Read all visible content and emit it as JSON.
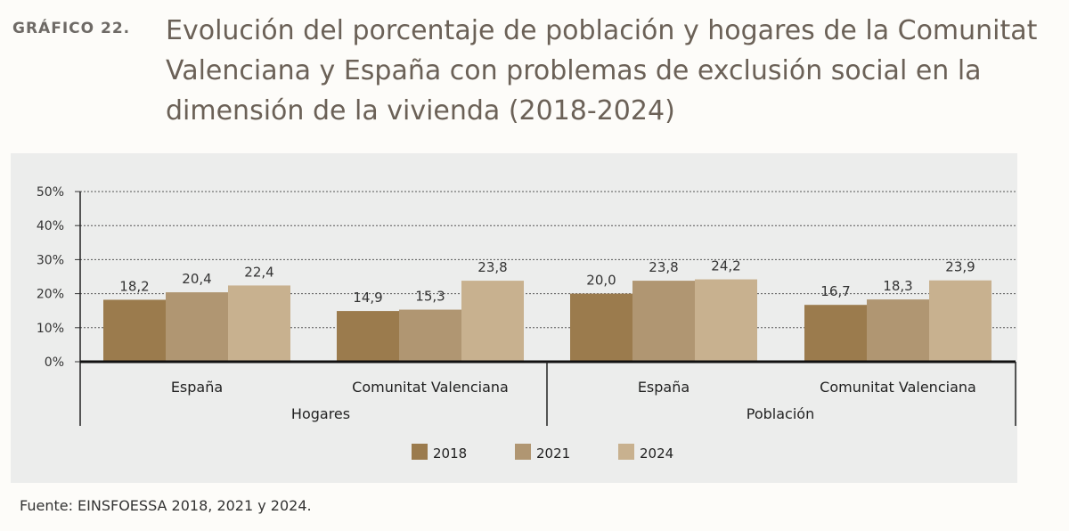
{
  "header": {
    "label": "GRÁFICO 22.",
    "title": "Evolución del porcentaje de población y hogares de la Comunitat Valenciana y España con problemas de exclusión social en la dimensión de la vivienda (2018-2024)"
  },
  "source": "Fuente: EINSFOESSA 2018, 2021 y 2024.",
  "chart_data": {
    "type": "bar",
    "ylim": [
      0,
      50
    ],
    "yticks": [
      "0%",
      "10%",
      "20%",
      "30%",
      "40%",
      "50%"
    ],
    "grid": true,
    "legend_placement": "bottom",
    "groups": [
      {
        "label": "Hogares",
        "categories": [
          "España",
          "Comunitat Valenciana"
        ]
      },
      {
        "label": "Población",
        "categories": [
          "España",
          "Comunitat Valenciana"
        ]
      }
    ],
    "categories": [
      "Hogares - España",
      "Hogares - Comunitat Valenciana",
      "Población - España",
      "Población - Comunitat Valenciana"
    ],
    "series": [
      {
        "name": "2018",
        "color": "#9b7b4d",
        "values": [
          18.2,
          14.9,
          20.0,
          16.7
        ],
        "labels": [
          "18,2",
          "14,9",
          "20,0",
          "16,7"
        ]
      },
      {
        "name": "2021",
        "color": "#b09672",
        "values": [
          20.4,
          15.3,
          23.8,
          18.3
        ],
        "labels": [
          "20,4",
          "15,3",
          "23,8",
          "18,3"
        ]
      },
      {
        "name": "2024",
        "color": "#c8b18f",
        "values": [
          22.4,
          23.8,
          24.2,
          23.9
        ],
        "labels": [
          "22,4",
          "23,8",
          "24,2",
          "23,9"
        ]
      }
    ]
  }
}
